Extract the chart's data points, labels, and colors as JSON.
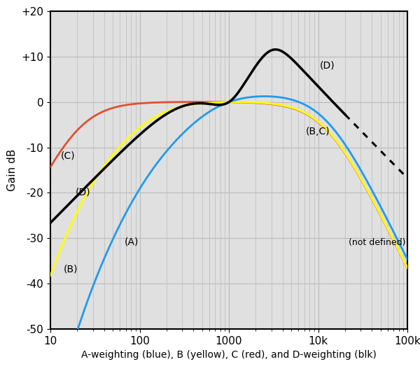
{
  "title": "",
  "xlabel": "A-weighting (blue), B (yellow), C (red), and D-weighting (blk)",
  "ylabel": "Gain dB",
  "xlim": [
    10,
    100000
  ],
  "ylim": [
    -50,
    20
  ],
  "yticks": [
    -50,
    -40,
    -30,
    -20,
    -10,
    0,
    10,
    20
  ],
  "ytick_labels": [
    "-50",
    "-40",
    "-30",
    "-20",
    "-10",
    "0",
    "+10",
    "+20"
  ],
  "colors": {
    "A": "#2299EE",
    "B": "#FFFF00",
    "C": "#E05030",
    "D": "#000000",
    "dotted": "#000000"
  },
  "background_color": "#ffffff",
  "plot_bg_color": "#e0e0e0",
  "grid_color": "#bbbbbb"
}
